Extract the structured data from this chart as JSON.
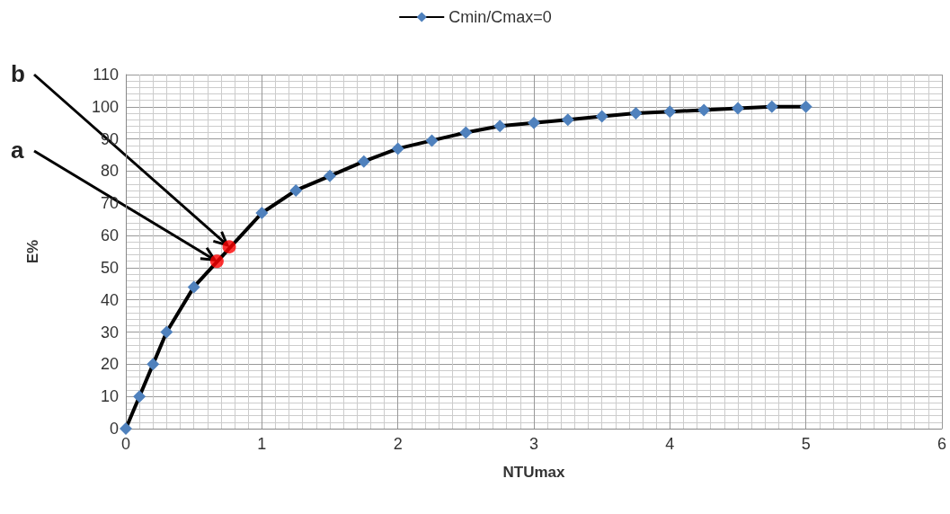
{
  "chart_data": {
    "type": "line",
    "xlabel": "NTUmax",
    "ylabel": "E%",
    "series": [
      {
        "name": "Cmin/Cmax=0",
        "color": "#4f81bd",
        "marker": "diamond",
        "x": [
          0,
          0.1,
          0.2,
          0.3,
          0.5,
          1,
          1.25,
          1.5,
          1.75,
          2,
          2.25,
          2.5,
          2.75,
          3,
          3.25,
          3.5,
          3.75,
          4,
          4.25,
          4.5,
          4.75,
          5
        ],
        "values": [
          0,
          10,
          20,
          30,
          44,
          67,
          74,
          78.5,
          83,
          87,
          89.5,
          92,
          94,
          95,
          96,
          97,
          98,
          98.5,
          99,
          99.5,
          100,
          100
        ]
      },
      {
        "type": "scatter",
        "color": "#ff0000",
        "marker": "circle",
        "x": [
          0.67,
          0.76
        ],
        "values": [
          52,
          56.5
        ]
      }
    ],
    "annotations": [
      {
        "text": "a",
        "x": 0.67,
        "y": 52
      },
      {
        "text": "b",
        "x": 0.76,
        "y": 56.5
      }
    ],
    "xlim": [
      0,
      6
    ],
    "xticks": [
      0,
      1,
      2,
      3,
      4,
      5,
      6
    ],
    "ylim": [
      0,
      110
    ],
    "yticks": [
      0,
      10,
      20,
      30,
      40,
      50,
      60,
      70,
      80,
      90,
      100,
      110
    ],
    "grid": true,
    "legend": "top",
    "line_style": "solid"
  }
}
